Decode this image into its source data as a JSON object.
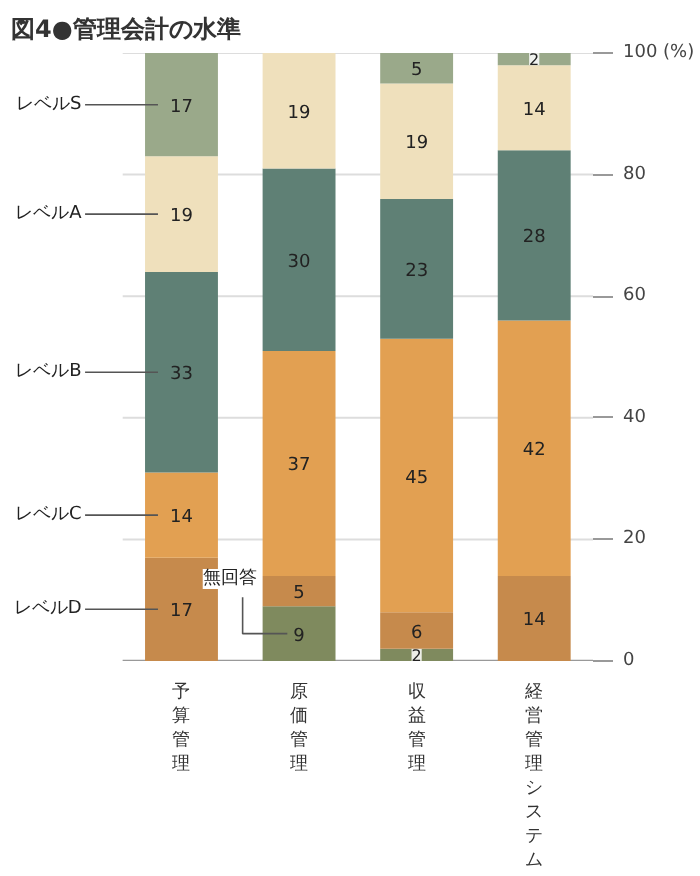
{
  "chart_data": {
    "type": "bar",
    "stacked": true,
    "title": "図4●管理会計の水準",
    "categories": [
      "予算管理",
      "原価管理",
      "収益管理",
      "経営管理システム"
    ],
    "series": [
      {
        "name": "無回答",
        "color": "#7f8a5e",
        "values": [
          0,
          9,
          2,
          0
        ],
        "value_labels": [
          null,
          "9",
          "2",
          null
        ]
      },
      {
        "name": "レベルD",
        "color": "#c68a4c",
        "values": [
          17,
          5,
          6,
          14
        ],
        "value_labels": [
          "17",
          "5",
          "6",
          "14"
        ]
      },
      {
        "name": "レベルC",
        "color": "#e2a052",
        "values": [
          14,
          37,
          45,
          42
        ],
        "value_labels": [
          "14",
          "37",
          "45",
          "42"
        ]
      },
      {
        "name": "レベルB",
        "color": "#5f8075",
        "values": [
          33,
          30,
          23,
          28
        ],
        "value_labels": [
          "33",
          "30",
          "23",
          "28"
        ]
      },
      {
        "name": "レベルA",
        "color": "#efe0bc",
        "values": [
          19,
          19,
          19,
          14
        ],
        "value_labels": [
          "19",
          "19",
          "19",
          "14"
        ]
      },
      {
        "name": "レベルS",
        "color": "#9aa98a",
        "values": [
          17,
          0,
          5,
          2
        ],
        "value_labels": [
          "17",
          null,
          "5",
          "2"
        ]
      }
    ],
    "ylim": [
      0,
      100
    ],
    "yticks": [
      0,
      20,
      40,
      60,
      80,
      {
        "value": 100,
        "label": "100 (%)"
      }
    ],
    "grid": "y"
  }
}
